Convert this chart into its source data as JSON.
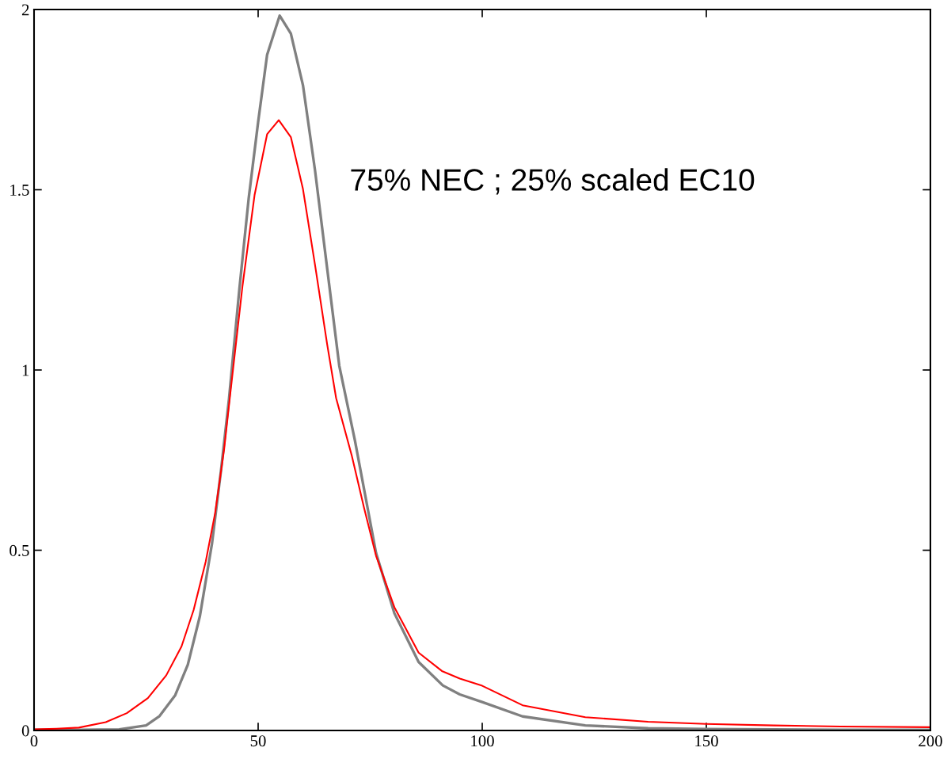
{
  "chart_data": {
    "type": "line",
    "annotations": [
      "75% NEC ; 25% scaled EC10"
    ],
    "xlim": [
      0,
      200
    ],
    "xticks": [
      0,
      50,
      100,
      150,
      200
    ],
    "ylim": [
      0,
      2
    ],
    "yticks": [
      0,
      0.5,
      1,
      1.5,
      2
    ],
    "grid": false,
    "legend": false,
    "marker": "none",
    "line_style": "solid",
    "series": [
      {
        "color": "#808080",
        "x": [
          0,
          10,
          19,
          25,
          28,
          31.5,
          34.3,
          37,
          39.7,
          41.7,
          43.5,
          45.8,
          47.9,
          50,
          52,
          54.8,
          57.3,
          60,
          62.7,
          65.4,
          68.1,
          71.6,
          76.3,
          80.4,
          85.8,
          91.2,
          95,
          100,
          109,
          123,
          137,
          150,
          165,
          180,
          200
        ],
        "values": [
          0.002,
          0.002,
          0.003,
          0.014,
          0.04,
          0.098,
          0.182,
          0.317,
          0.518,
          0.72,
          0.92,
          1.223,
          1.477,
          1.688,
          1.874,
          1.983,
          1.933,
          1.79,
          1.553,
          1.282,
          1.012,
          0.804,
          0.493,
          0.325,
          0.19,
          0.125,
          0.1,
          0.079,
          0.039,
          0.014,
          0.006,
          0.004,
          0.003,
          0.002,
          0.002
        ]
      },
      {
        "color": "#ff0000",
        "x": [
          0,
          5,
          10,
          16,
          20.7,
          25.4,
          29.5,
          32.9,
          35.6,
          38.3,
          40.4,
          42.4,
          43.8,
          46.5,
          49.2,
          52,
          54.6,
          57.3,
          60,
          62.7,
          65.4,
          67.4,
          70.9,
          73.6,
          76.3,
          80.4,
          85.8,
          91,
          95,
          100,
          109,
          123,
          137,
          150,
          165,
          180,
          200
        ],
        "values": [
          0.003,
          0.005,
          0.008,
          0.023,
          0.048,
          0.09,
          0.153,
          0.233,
          0.334,
          0.468,
          0.603,
          0.779,
          0.936,
          1.232,
          1.485,
          1.654,
          1.693,
          1.646,
          1.502,
          1.291,
          1.071,
          0.922,
          0.762,
          0.619,
          0.485,
          0.342,
          0.216,
          0.165,
          0.144,
          0.124,
          0.07,
          0.037,
          0.024,
          0.018,
          0.014,
          0.011,
          0.009
        ]
      }
    ]
  }
}
